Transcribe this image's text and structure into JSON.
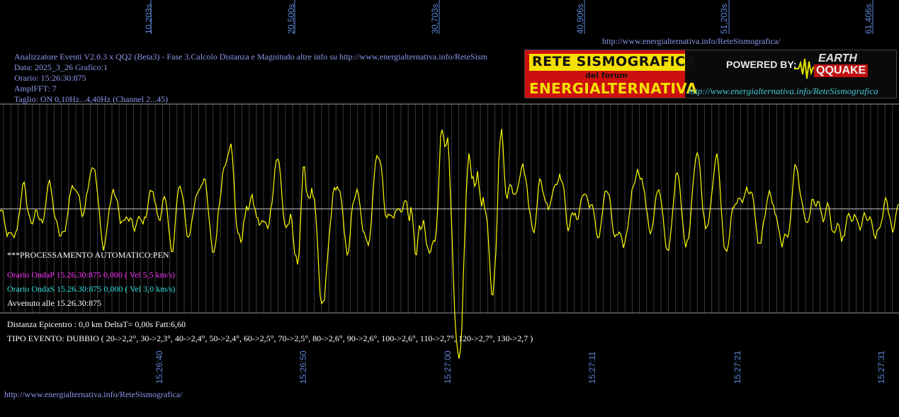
{
  "header": {
    "title_line": "Analizzatore Eventi V2.0.3 x QQ2 (Beta3) - Fase 3.Calcolo Distanza e Magnitudo altre info su http://www.energialternativa.info/ReteSism",
    "data_line": "Data: 2025_3_26 Grafico:1",
    "orario_line": "Orario: 15:26:30:875",
    "ampl_line": "AmplFFT: 7",
    "taglio_line": "Taglio: ON 0,10Hz...4,40Hz       (Channel 2...45)"
  },
  "top_url": "http://www.energialternativa.info/ReteSismografica/",
  "bottom_url": "http://www.energialternativa.info/ReteSismografica/",
  "banner": {
    "line1": "RETE SISMOGRAFICA",
    "line2": "del forum",
    "line3": "ENERGIALTERNATIVA",
    "powered": "POWERED BY:",
    "eq_top": "EARTH",
    "eq_bottom": "QQUAKE",
    "url": "http://www.energialternativa.info/ReteSismografica"
  },
  "processing": {
    "status": "***PROCESSAMENTO AUTOMATICO:PEN",
    "onda_p": "Orario OndaP 15.26.30:875  0,000 ( Vel 5,5 km/s)",
    "onda_s": "Orario OndaS 15.26.30:875  0,000 ( Vel 3,0 km/s)",
    "avvenuto": "Avvenuto alle 15.26.30:875",
    "distanza": "Distanza Epicentro : 0,0 km DeltaT= 0,00s  Fatt:6,60",
    "tipo_evento": "TIPO EVENTO: DUBBIO ( 20->2,2°, 30->2,3°, 40->2,4°, 50->2,4°, 60->2,5°, 70->2,5°, 80->2,6°, 90->2,6°, 100->2,6°, 110->2,7°, 120->2,7°, 130->2,7 )"
  },
  "top_ticks": [
    "10,203s",
    "20,500s",
    "30,703s",
    "40,906s",
    "51,203s",
    "61,406s"
  ],
  "bottom_ticks": [
    "15:26:40",
    "15:26:50",
    "15:27:00",
    "15:27:11",
    "15:27:21",
    "15:27:31"
  ],
  "colors": {
    "trace": "#ffff00",
    "onda_p": "#ff33ff",
    "onda_s": "#33e0e0",
    "axis_labels": "#5b87d6",
    "header_text": "#8f97ee",
    "grid": "#4a4a4a"
  }
}
